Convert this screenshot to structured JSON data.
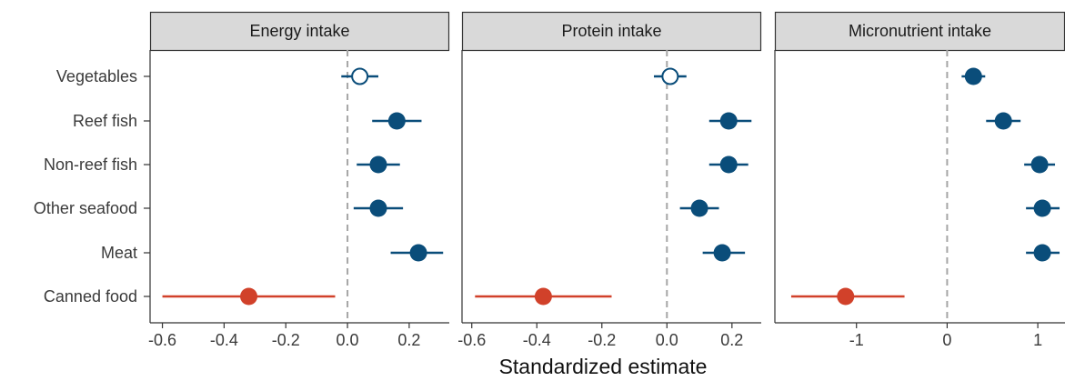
{
  "chart_data": {
    "type": "scatter",
    "subtype": "forest-plot",
    "xlabel": "Standardized estimate",
    "categories": [
      "Vegetables",
      "Reef fish",
      "Non-reef fish",
      "Other seafood",
      "Meat",
      "Canned food"
    ],
    "reference_line": 0,
    "colors": {
      "positive": "#0a4d7a",
      "negative": "#d1412a",
      "strip_fill": "#d9d9d9",
      "ref_line": "#a6a6a6",
      "axis": "#333333"
    },
    "panels": [
      {
        "title": "Energy intake",
        "xlim": [
          -0.64,
          0.33
        ],
        "ticks": [
          -0.6,
          -0.4,
          -0.2,
          0.0,
          0.2
        ],
        "tick_labels": [
          "-0.6",
          "-0.4",
          "-0.2",
          "0.0",
          "0.2"
        ],
        "points": [
          {
            "category": "Vegetables",
            "estimate": 0.04,
            "lower": -0.02,
            "upper": 0.1,
            "significant": false
          },
          {
            "category": "Reef fish",
            "estimate": 0.16,
            "lower": 0.08,
            "upper": 0.24,
            "significant": true
          },
          {
            "category": "Non-reef fish",
            "estimate": 0.1,
            "lower": 0.03,
            "upper": 0.17,
            "significant": true
          },
          {
            "category": "Other seafood",
            "estimate": 0.1,
            "lower": 0.02,
            "upper": 0.18,
            "significant": true
          },
          {
            "category": "Meat",
            "estimate": 0.23,
            "lower": 0.14,
            "upper": 0.31,
            "significant": true
          },
          {
            "category": "Canned food",
            "estimate": -0.32,
            "lower": -0.6,
            "upper": -0.04,
            "significant": true
          }
        ]
      },
      {
        "title": "Protein intake",
        "xlim": [
          -0.63,
          0.29
        ],
        "ticks": [
          -0.6,
          -0.4,
          -0.2,
          0.0,
          0.2
        ],
        "tick_labels": [
          "-0.6",
          "-0.4",
          "-0.2",
          "0.0",
          "0.2"
        ],
        "points": [
          {
            "category": "Vegetables",
            "estimate": 0.01,
            "lower": -0.04,
            "upper": 0.06,
            "significant": false
          },
          {
            "category": "Reef fish",
            "estimate": 0.19,
            "lower": 0.13,
            "upper": 0.26,
            "significant": true
          },
          {
            "category": "Non-reef fish",
            "estimate": 0.19,
            "lower": 0.13,
            "upper": 0.25,
            "significant": true
          },
          {
            "category": "Other seafood",
            "estimate": 0.1,
            "lower": 0.04,
            "upper": 0.16,
            "significant": true
          },
          {
            "category": "Meat",
            "estimate": 0.17,
            "lower": 0.11,
            "upper": 0.24,
            "significant": true
          },
          {
            "category": "Canned food",
            "estimate": -0.38,
            "lower": -0.59,
            "upper": -0.17,
            "significant": true
          }
        ]
      },
      {
        "title": "Micronutrient intake",
        "xlim": [
          -1.9,
          1.3
        ],
        "ticks": [
          -1,
          0,
          1
        ],
        "tick_labels": [
          "-1",
          "0",
          "1"
        ],
        "points": [
          {
            "category": "Vegetables",
            "estimate": 0.29,
            "lower": 0.16,
            "upper": 0.42,
            "significant": true
          },
          {
            "category": "Reef fish",
            "estimate": 0.62,
            "lower": 0.43,
            "upper": 0.81,
            "significant": true
          },
          {
            "category": "Non-reef fish",
            "estimate": 1.02,
            "lower": 0.85,
            "upper": 1.19,
            "significant": true
          },
          {
            "category": "Other seafood",
            "estimate": 1.05,
            "lower": 0.87,
            "upper": 1.24,
            "significant": true
          },
          {
            "category": "Meat",
            "estimate": 1.05,
            "lower": 0.87,
            "upper": 1.24,
            "significant": true
          },
          {
            "category": "Canned food",
            "estimate": -1.12,
            "lower": -1.72,
            "upper": -0.47,
            "significant": true
          }
        ]
      }
    ]
  }
}
